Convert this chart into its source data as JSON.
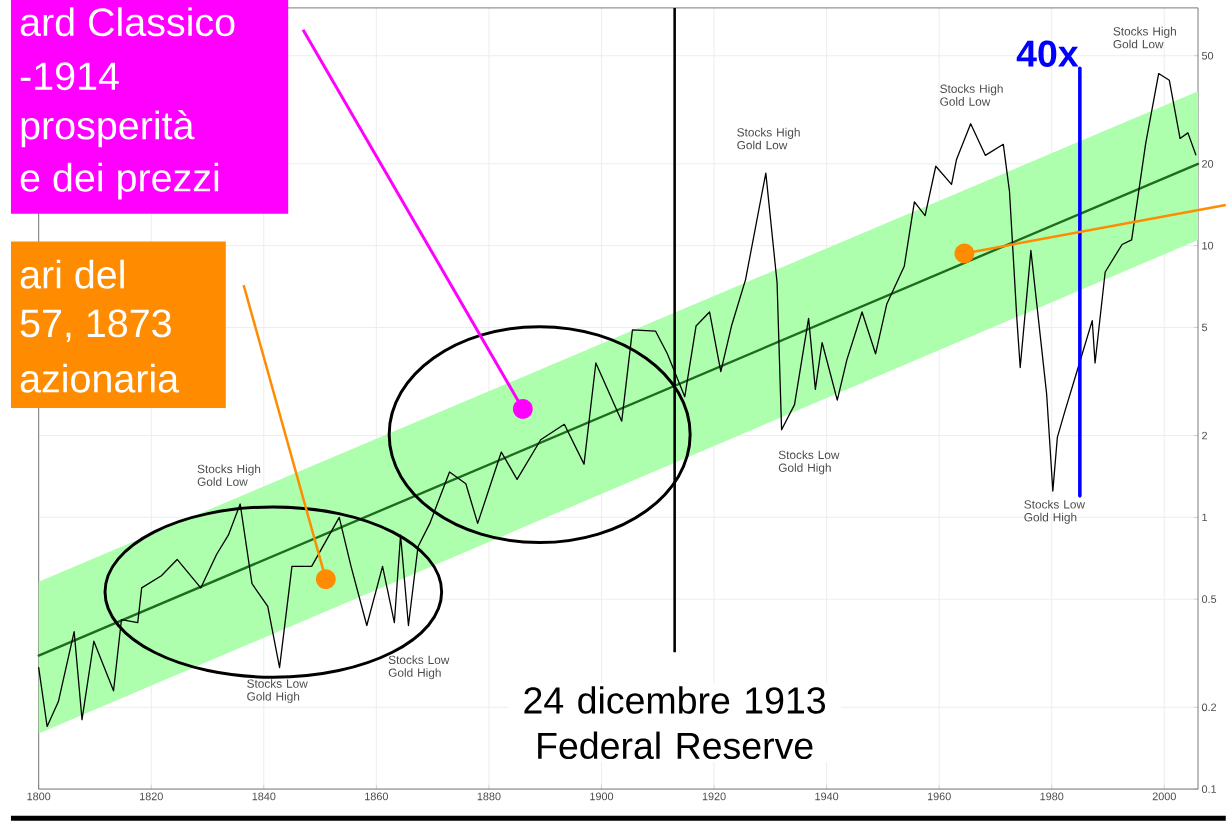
{
  "chart_data": {
    "type": "line",
    "log": "y",
    "grid": true,
    "xlim": [
      1800,
      2006
    ],
    "ylim": [
      0.1,
      75
    ],
    "xticks": [
      1800,
      1820,
      1840,
      1860,
      1880,
      1900,
      1920,
      1940,
      1960,
      1980,
      2000
    ],
    "yticks": [
      0.1,
      0.2,
      0.5,
      1,
      2,
      5,
      10,
      20,
      50
    ],
    "series": [
      {
        "color": "#1f6b1f",
        "x": [
          1800,
          2006
        ],
        "values": [
          0.31,
          20
        ],
        "lower": [
          0.16,
          10.5
        ],
        "upper": [
          0.58,
          37
        ]
      },
      {
        "color": "#000000",
        "x": [
          1800,
          1801.5,
          1803.5,
          1806.3,
          1807.7,
          1809.8,
          1813.3,
          1814.7,
          1817.6,
          1818.3,
          1821.8,
          1824.6,
          1828.8,
          1831.6,
          1833.7,
          1835.8,
          1837.9,
          1840.7,
          1842.8,
          1845,
          1848.5,
          1853.4,
          1855.5,
          1858.3,
          1861.1,
          1863.2,
          1864.3,
          1865.7,
          1867.4,
          1869.5,
          1873,
          1875.9,
          1878,
          1882.2,
          1885,
          1889.2,
          1893.4,
          1896.9,
          1899,
          1903.6,
          1905.5,
          1909.6,
          1911.7,
          1914.8,
          1916.8,
          1919.2,
          1921.2,
          1923.1,
          1925.6,
          1929.2,
          1931.2,
          1932,
          1934.3,
          1936.8,
          1938,
          1939.2,
          1941.9,
          1943.6,
          1946.3,
          1948.7,
          1950.7,
          1953.8,
          1955.6,
          1957.5,
          1959.4,
          1962.2,
          1963.1,
          1965.6,
          1968.2,
          1971.4,
          1972.5,
          1973.8,
          1974.4,
          1976.3,
          1979.1,
          1980.2,
          1981,
          1982.4,
          1984.4,
          1987.2,
          1987.7,
          1989.5,
          1992.5,
          1994.2,
          1996.7,
          1999,
          2000.9,
          2002.8,
          2004.2,
          2005.6
        ],
        "values": [
          0.28,
          0.17,
          0.21,
          0.38,
          0.18,
          0.35,
          0.23,
          0.42,
          0.41,
          0.55,
          0.61,
          0.7,
          0.55,
          0.73,
          0.86,
          1.12,
          0.57,
          0.47,
          0.28,
          0.66,
          0.66,
          1.0,
          0.66,
          0.4,
          0.66,
          0.41,
          0.86,
          0.4,
          0.78,
          0.95,
          1.47,
          1.33,
          0.95,
          1.74,
          1.38,
          1.93,
          2.2,
          1.57,
          3.7,
          2.26,
          4.9,
          4.85,
          4.0,
          2.78,
          5.06,
          5.7,
          3.44,
          5.06,
          7.5,
          18.5,
          7.3,
          2.1,
          2.6,
          5.4,
          2.96,
          4.4,
          2.7,
          3.8,
          5.7,
          4.0,
          6.1,
          8.4,
          14.5,
          12.9,
          19.6,
          16.8,
          20.8,
          28.1,
          21.5,
          23.6,
          15.8,
          5.4,
          3.56,
          9.6,
          2.84,
          1.25,
          1.97,
          2.48,
          3.4,
          5.3,
          3.7,
          8.0,
          10.1,
          10.5,
          23.8,
          43,
          40.6,
          24.8,
          26,
          21.6
        ]
      },
      {
        "name": "40x",
        "color": "#0000ff",
        "x": [
          1985,
          1985
        ],
        "values": [
          1.2,
          45
        ]
      }
    ],
    "ref_lines": [
      {
        "axis": "x",
        "value": 1913,
        "label": "24 dicembre 1913 Federal Reserve",
        "color": "#000000"
      }
    ],
    "annotations": [
      "ard Classico",
      "-1914",
      "prosperità",
      "e dei prezzi",
      "ari del",
      "57, 1873",
      "azionaria",
      "Stocks High Gold Low",
      "Stocks Low Gold High",
      "Stocks Low Gold High",
      "Stocks High Gold Low",
      "Stocks Low Gold High",
      "Stocks High Gold Low",
      "Stocks Low Gold High",
      "Stocks High Gold Low"
    ]
  }
}
